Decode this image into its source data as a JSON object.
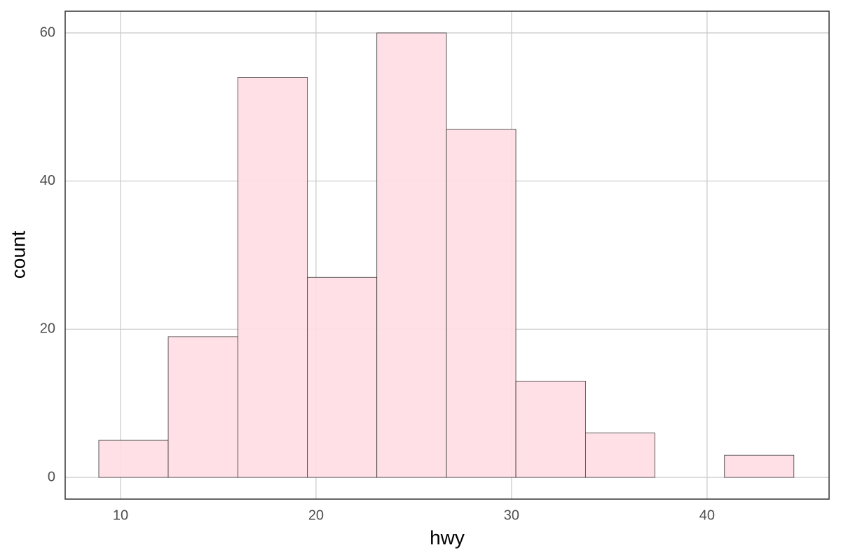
{
  "chart_data": {
    "type": "histogram",
    "x_label": "hwy",
    "y_label": "count",
    "bins": [
      8.89,
      12.44,
      16,
      19.56,
      23.11,
      26.67,
      30.22,
      33.78,
      37.33,
      40.89,
      44.44
    ],
    "values": [
      5,
      19,
      54,
      27,
      60,
      47,
      13,
      6,
      0,
      3
    ],
    "color": "#ffdde4",
    "edgecolor": "#333333",
    "xlim": [
      7.17,
      46.24
    ],
    "xticks": [
      10,
      20,
      30,
      40
    ],
    "ylim": [
      -2.93,
      62.93
    ],
    "yticks": [
      0,
      20,
      40,
      60
    ],
    "grid": true
  }
}
